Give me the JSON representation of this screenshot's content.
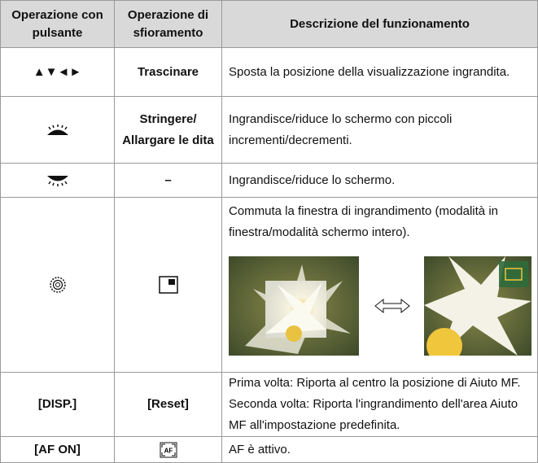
{
  "table": {
    "header": [
      "Operazione con pulsante",
      "Operazione di sfioramento",
      "Descrizione del funzionamento"
    ],
    "rows": [
      {
        "button": "▲▼◄►",
        "touch": "Trascinare",
        "description": [
          "Sposta la posizione della visualizzazione ingrandita."
        ]
      },
      {
        "touch": "Stringere/ Allargare le dita",
        "description": [
          "Ingrandisce/riduce lo schermo con piccoli incrementi/decrementi."
        ]
      },
      {
        "touch": "–",
        "description": [
          "Ingrandisce/riduce lo schermo."
        ]
      },
      {
        "description": [
          "Commuta la finestra di ingrandimento (modalità in finestra/modalità schermo intero)."
        ]
      },
      {
        "button": "[DISP.]",
        "touch": "[Reset]",
        "description": [
          "Prima volta: Riporta al centro la posizione di Aiuto MF.",
          "Seconda volta: Riporta l'ingrandimento dell'area Aiuto MF all'impostazione predefinita."
        ]
      },
      {
        "button": "[AF ON]",
        "touch_icon_label": "AF",
        "description": [
          "AF è attivo."
        ]
      }
    ]
  }
}
